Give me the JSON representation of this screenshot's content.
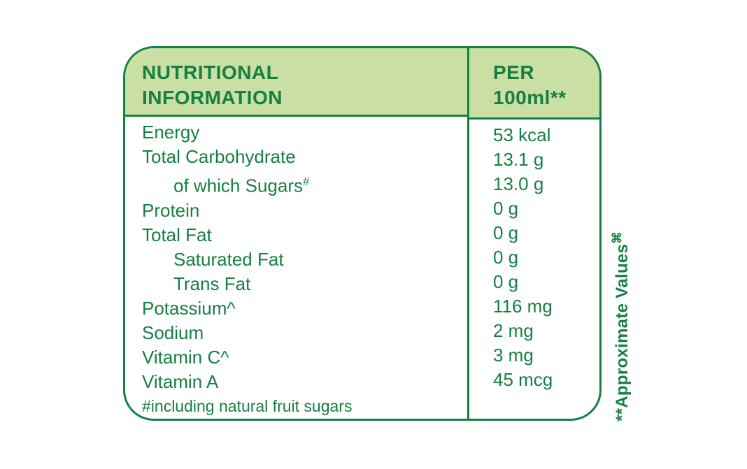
{
  "table": {
    "header": {
      "left_line1": "NUTRITIONAL",
      "left_line2": "INFORMATION",
      "right_line1": "PER",
      "right_line2": "100ml**"
    },
    "rows": [
      {
        "label": "Energy",
        "value": "53 kcal"
      },
      {
        "label": "Total Carbohydrate",
        "value": "13.1 g"
      },
      {
        "label": "of which Sugars",
        "sup": "#",
        "value": "13.0 g",
        "indent": true
      },
      {
        "label": "Protein",
        "value": "0 g"
      },
      {
        "label": "Total Fat",
        "value": "0 g"
      },
      {
        "label": "Saturated Fat",
        "value": "0 g",
        "indent": true
      },
      {
        "label": "Trans Fat",
        "value": "0 g",
        "indent": true
      },
      {
        "label": "Potassium^",
        "value": "116 mg"
      },
      {
        "label": "Sodium",
        "value": "2 mg"
      },
      {
        "label": "Vitamin C^",
        "value": "3 mg"
      },
      {
        "label": "Vitamin A",
        "value": "45 mcg"
      }
    ],
    "footnote": "#including natural fruit sugars"
  },
  "side_note": {
    "text": "**Approximate Values",
    "symbol": "⌘"
  },
  "colors": {
    "green": "#167f43",
    "header_background": "#c9dfa3",
    "page_background": "#ffffff"
  }
}
